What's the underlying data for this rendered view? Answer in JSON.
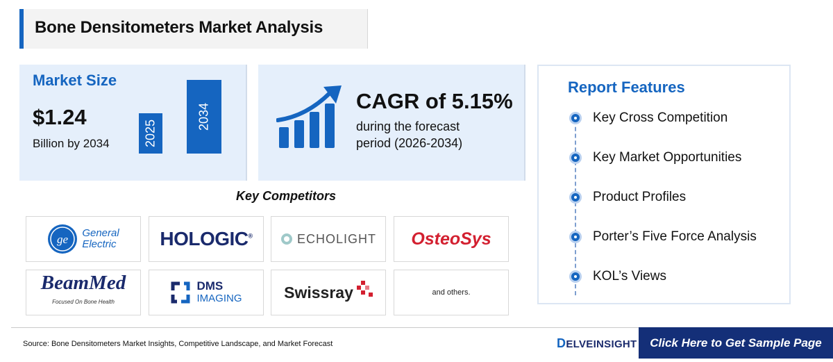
{
  "header": {
    "title": "Bone Densitometers Market Analysis"
  },
  "market_size": {
    "label": "Market Size",
    "value": "$1.24",
    "sub": "Billion by 2034",
    "bars": [
      {
        "label": "2025"
      },
      {
        "label": "2034"
      }
    ]
  },
  "cagr": {
    "title": "CAGR of 5.15%",
    "line1": "during the forecast",
    "line2": "period (2026-2034)"
  },
  "competitors": {
    "title": "Key Competitors",
    "ge_line1": "General",
    "ge_line2": "Electric",
    "hologic": "HOLOGIC",
    "hologic_mark": "®",
    "echolight": "ECHOLIGHT",
    "osteosys": "OsteoSys",
    "beammed": "BeamMed",
    "beammed_tagline": "Focused On Bone Health",
    "dms_line1": "DMS",
    "dms_line2": "IMAGING",
    "swissray": "Swissray",
    "others": "and others."
  },
  "report_features": {
    "title": "Report Features",
    "items": [
      "Key Cross Competition",
      "Key Market Opportunities",
      "Product Profiles",
      "Porter’s Five Force Analysis",
      "KOL’s Views"
    ]
  },
  "footer": {
    "source": "Source: Bone Densitometers Market Insights, Competitive Landscape, and Market Forecast",
    "brand_initial": "D",
    "brand_rest": "ELVEINSIGHT",
    "cta": "Click Here to Get Sample Page"
  },
  "colors": {
    "accent": "#1565c0",
    "navy": "#142f78",
    "panel": "#e5effb"
  }
}
